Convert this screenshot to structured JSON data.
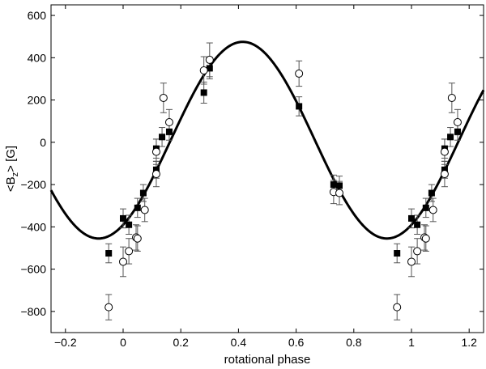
{
  "chart_data": {
    "type": "scatter",
    "xlabel": "rotational phase",
    "ylabel": "<B z > [G]",
    "ylabel_parts": {
      "pre": "<B",
      "sub": "z",
      "post": "> [G]"
    },
    "xlim": [
      -0.25,
      1.25
    ],
    "ylim": [
      -900,
      650
    ],
    "x_ticks": [
      -0.2,
      0,
      0.2,
      0.4,
      0.6,
      0.8,
      1,
      1.2
    ],
    "x_tick_labels": [
      "−0.2",
      "0",
      "0.2",
      "0.4",
      "0.6",
      "0.8",
      "1",
      "1.2"
    ],
    "y_ticks": [
      -800,
      -600,
      -400,
      -200,
      0,
      200,
      400,
      600
    ],
    "y_tick_labels": [
      "−800",
      "−600",
      "−400",
      "−200",
      "0",
      "200",
      "400",
      "600"
    ],
    "grid": false,
    "fit_curve": {
      "type": "line",
      "model": "mean + amplitude * cos(2*pi*(phase - phase_max))",
      "mean": 10,
      "amplitude": 465,
      "phase_max": 0.415,
      "style": "solid black, thick"
    },
    "series": [
      {
        "marker": "filled-square",
        "color": "#000000",
        "points": [
          {
            "x": -0.05,
            "y": -525,
            "err": 45
          },
          {
            "x": 0.0,
            "y": -360,
            "err": 45
          },
          {
            "x": 0.02,
            "y": -390,
            "err": 45
          },
          {
            "x": 0.05,
            "y": -310,
            "err": 45
          },
          {
            "x": 0.07,
            "y": -240,
            "err": 40
          },
          {
            "x": 0.115,
            "y": -30,
            "err": 45
          },
          {
            "x": 0.115,
            "y": -130,
            "err": 40
          },
          {
            "x": 0.135,
            "y": 25,
            "err": 45
          },
          {
            "x": 0.16,
            "y": 50,
            "err": 40
          },
          {
            "x": 0.28,
            "y": 235,
            "err": 50
          },
          {
            "x": 0.3,
            "y": 350,
            "err": 50
          },
          {
            "x": 0.61,
            "y": 170,
            "err": 45
          },
          {
            "x": 0.73,
            "y": -200,
            "err": 45
          },
          {
            "x": 0.75,
            "y": -205,
            "err": 45
          },
          {
            "x": 0.95,
            "y": -525,
            "err": 45
          },
          {
            "x": 1.0,
            "y": -360,
            "err": 45
          },
          {
            "x": 1.02,
            "y": -390,
            "err": 45
          },
          {
            "x": 1.05,
            "y": -310,
            "err": 45
          },
          {
            "x": 1.07,
            "y": -240,
            "err": 40
          },
          {
            "x": 1.115,
            "y": -30,
            "err": 45
          },
          {
            "x": 1.115,
            "y": -130,
            "err": 40
          },
          {
            "x": 1.135,
            "y": 25,
            "err": 45
          },
          {
            "x": 1.16,
            "y": 50,
            "err": 40
          }
        ]
      },
      {
        "marker": "open-circle",
        "color": "#000000",
        "points": [
          {
            "x": -0.05,
            "y": -780,
            "err": 60
          },
          {
            "x": 0.0,
            "y": -565,
            "err": 70
          },
          {
            "x": 0.02,
            "y": -515,
            "err": 60
          },
          {
            "x": 0.045,
            "y": -450,
            "err": 60
          },
          {
            "x": 0.05,
            "y": -455,
            "err": 60
          },
          {
            "x": 0.075,
            "y": -320,
            "err": 55
          },
          {
            "x": 0.115,
            "y": -45,
            "err": 60
          },
          {
            "x": 0.115,
            "y": -150,
            "err": 60
          },
          {
            "x": 0.14,
            "y": 210,
            "err": 70
          },
          {
            "x": 0.16,
            "y": 95,
            "err": 60
          },
          {
            "x": 0.28,
            "y": 340,
            "err": 65
          },
          {
            "x": 0.3,
            "y": 390,
            "err": 80
          },
          {
            "x": 0.61,
            "y": 325,
            "err": 60
          },
          {
            "x": 0.73,
            "y": -235,
            "err": 55
          },
          {
            "x": 0.75,
            "y": -240,
            "err": 55
          },
          {
            "x": 0.95,
            "y": -780,
            "err": 60
          },
          {
            "x": 1.0,
            "y": -565,
            "err": 70
          },
          {
            "x": 1.02,
            "y": -515,
            "err": 60
          },
          {
            "x": 1.045,
            "y": -450,
            "err": 60
          },
          {
            "x": 1.05,
            "y": -455,
            "err": 60
          },
          {
            "x": 1.075,
            "y": -320,
            "err": 55
          },
          {
            "x": 1.115,
            "y": -45,
            "err": 60
          },
          {
            "x": 1.115,
            "y": -150,
            "err": 60
          },
          {
            "x": 1.14,
            "y": 210,
            "err": 70
          },
          {
            "x": 1.16,
            "y": 95,
            "err": 60
          }
        ]
      }
    ]
  }
}
